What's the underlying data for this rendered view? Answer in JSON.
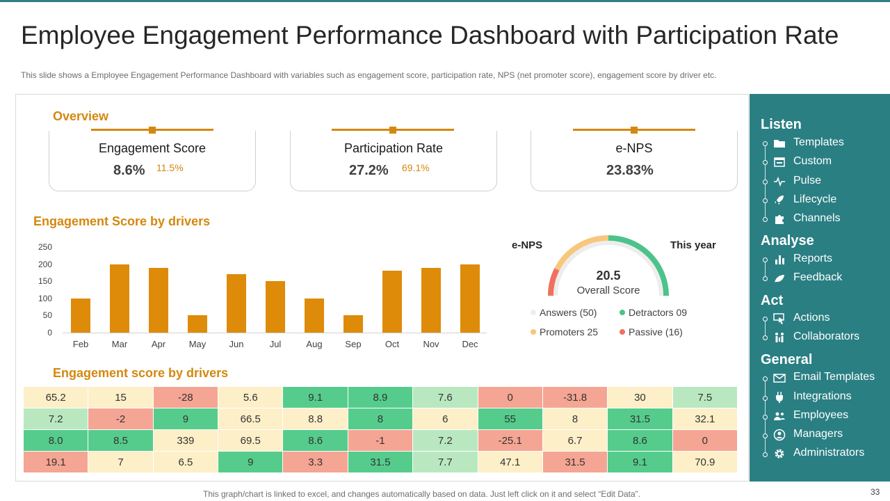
{
  "title": "Employee Engagement Performance Dashboard with Participation Rate",
  "subtitle": "This slide shows a Employee Engagement Performance Dashboard with variables  such as engagement  score, participation rate, NPS (net promoter  score), engagement  score by driver  etc.",
  "overview": {
    "heading": "Overview",
    "cards": [
      {
        "title": "Engagement Score",
        "value": "8.6%",
        "sub": "11.5%"
      },
      {
        "title": "Participation Rate",
        "value": "27.2%",
        "sub": "69.1%"
      },
      {
        "title": "e-NPS",
        "value": "23.83%",
        "sub": ""
      }
    ]
  },
  "bar_section": {
    "heading": "Engagement Score by drivers"
  },
  "chart_data": {
    "type": "bar",
    "title": "Engagement Score by drivers",
    "categories": [
      "Feb",
      "Mar",
      "Apr",
      "May",
      "Jun",
      "Jul",
      "Aug",
      "Sep",
      "Oct",
      "Nov",
      "Dec"
    ],
    "values": [
      100,
      200,
      190,
      50,
      170,
      150,
      100,
      50,
      180,
      190,
      200
    ],
    "yticks": [
      0,
      50,
      100,
      150,
      200,
      250
    ],
    "ylim": [
      0,
      250
    ],
    "color": "#de8b0a"
  },
  "gauge": {
    "left_label": "e-NPS",
    "right_label": "This year",
    "score": "20.5",
    "score_label": "Overall Score",
    "legend": [
      {
        "label": "Answers (50)",
        "color": "#eeeeee"
      },
      {
        "label": "Detractors 09",
        "color": "#4cc38a"
      },
      {
        "label": "Promoters 25",
        "color": "#f6c77d"
      },
      {
        "label": "Passive (16)",
        "color": "#f07060"
      }
    ]
  },
  "heat_section": {
    "heading": "Engagement score by drivers"
  },
  "heatmap": {
    "colors": {
      "cream": "#fdefc8",
      "red": "#f5a593",
      "green": "#55cc8c",
      "lightgreen": "#b9e8c0"
    },
    "rows": [
      [
        {
          "v": "65.2",
          "c": "cream"
        },
        {
          "v": "15",
          "c": "cream"
        },
        {
          "v": "-28",
          "c": "red"
        },
        {
          "v": "5.6",
          "c": "cream"
        },
        {
          "v": "9.1",
          "c": "green"
        },
        {
          "v": "8.9",
          "c": "green"
        },
        {
          "v": "7.6",
          "c": "lightgreen"
        },
        {
          "v": "0",
          "c": "red"
        },
        {
          "v": "-31.8",
          "c": "red"
        },
        {
          "v": "30",
          "c": "cream"
        },
        {
          "v": "7.5",
          "c": "lightgreen"
        }
      ],
      [
        {
          "v": "7.2",
          "c": "lightgreen"
        },
        {
          "v": "-2",
          "c": "red"
        },
        {
          "v": "9",
          "c": "green"
        },
        {
          "v": "66.5",
          "c": "cream"
        },
        {
          "v": "8.8",
          "c": "cream"
        },
        {
          "v": "8",
          "c": "green"
        },
        {
          "v": "6",
          "c": "cream"
        },
        {
          "v": "55",
          "c": "green"
        },
        {
          "v": "8",
          "c": "cream"
        },
        {
          "v": "31.5",
          "c": "green"
        },
        {
          "v": "32.1",
          "c": "cream"
        }
      ],
      [
        {
          "v": "8.0",
          "c": "green"
        },
        {
          "v": "8.5",
          "c": "green"
        },
        {
          "v": "339",
          "c": "cream"
        },
        {
          "v": "69.5",
          "c": "cream"
        },
        {
          "v": "8.6",
          "c": "green"
        },
        {
          "v": "-1",
          "c": "red"
        },
        {
          "v": "7.2",
          "c": "lightgreen"
        },
        {
          "v": "-25.1",
          "c": "red"
        },
        {
          "v": "6.7",
          "c": "cream"
        },
        {
          "v": "8.6",
          "c": "green"
        },
        {
          "v": "0",
          "c": "red"
        }
      ],
      [
        {
          "v": "19.1",
          "c": "red"
        },
        {
          "v": "7",
          "c": "cream"
        },
        {
          "v": "6.5",
          "c": "cream"
        },
        {
          "v": "9",
          "c": "green"
        },
        {
          "v": "3.3",
          "c": "red"
        },
        {
          "v": "31.5",
          "c": "green"
        },
        {
          "v": "7.7",
          "c": "lightgreen"
        },
        {
          "v": "47.1",
          "c": "cream"
        },
        {
          "v": "31.5",
          "c": "red"
        },
        {
          "v": "9.1",
          "c": "green"
        },
        {
          "v": "70.9",
          "c": "cream"
        }
      ]
    ]
  },
  "sidebar": {
    "groups": [
      {
        "heading": "Listen",
        "items": [
          {
            "label": "Templates",
            "icon": "folder-icon"
          },
          {
            "label": "Custom",
            "icon": "custom-icon"
          },
          {
            "label": "Pulse",
            "icon": "pulse-icon"
          },
          {
            "label": "Lifecycle",
            "icon": "rocket-icon"
          },
          {
            "label": "Channels",
            "icon": "puzzle-icon"
          }
        ]
      },
      {
        "heading": "Analyse",
        "items": [
          {
            "label": "Reports",
            "icon": "bar-chart-icon"
          },
          {
            "label": "Feedback",
            "icon": "leaf-icon"
          }
        ]
      },
      {
        "heading": "Act",
        "items": [
          {
            "label": "Actions",
            "icon": "cursor-icon"
          },
          {
            "label": "Collaborators",
            "icon": "collaborators-icon"
          }
        ]
      },
      {
        "heading": "General",
        "items": [
          {
            "label": "Email Templates",
            "icon": "envelope-icon"
          },
          {
            "label": "Integrations",
            "icon": "plug-icon"
          },
          {
            "label": "Employees",
            "icon": "users-icon"
          },
          {
            "label": "Managers",
            "icon": "user-circle-icon"
          },
          {
            "label": "Administrators",
            "icon": "gear-icon"
          }
        ]
      }
    ]
  },
  "footer": "This graph/chart is linked to excel, and changes automatically based on data. Just left click on it and select “Edit Data”.",
  "page_number": "33"
}
